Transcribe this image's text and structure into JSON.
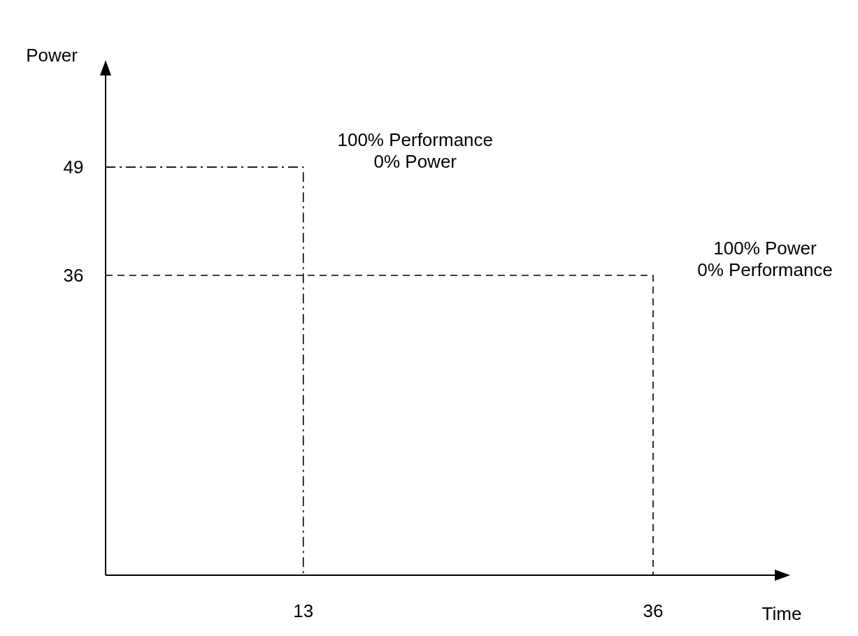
{
  "chart_data": {
    "type": "line",
    "xlabel": "Time",
    "ylabel": "Power",
    "xlim": [
      0,
      44
    ],
    "ylim": [
      0,
      60
    ],
    "xticks": [
      13,
      36
    ],
    "yticks": [
      36,
      49
    ],
    "grid": false,
    "marker": "none",
    "series": [
      {
        "color": "#000000",
        "line_style": "dashdot",
        "x": [
          0,
          13,
          13
        ],
        "values": [
          49,
          49,
          0
        ]
      },
      {
        "color": "#000000",
        "line_style": "dashed",
        "x": [
          0,
          36,
          36
        ],
        "values": [
          36,
          36,
          0
        ]
      }
    ],
    "annotations": [
      {
        "text": "100% Performance\n0% Power",
        "x": 13,
        "y": 49
      },
      {
        "text": "100% Power\n0% Performance",
        "x": 36,
        "y": 36
      }
    ]
  }
}
